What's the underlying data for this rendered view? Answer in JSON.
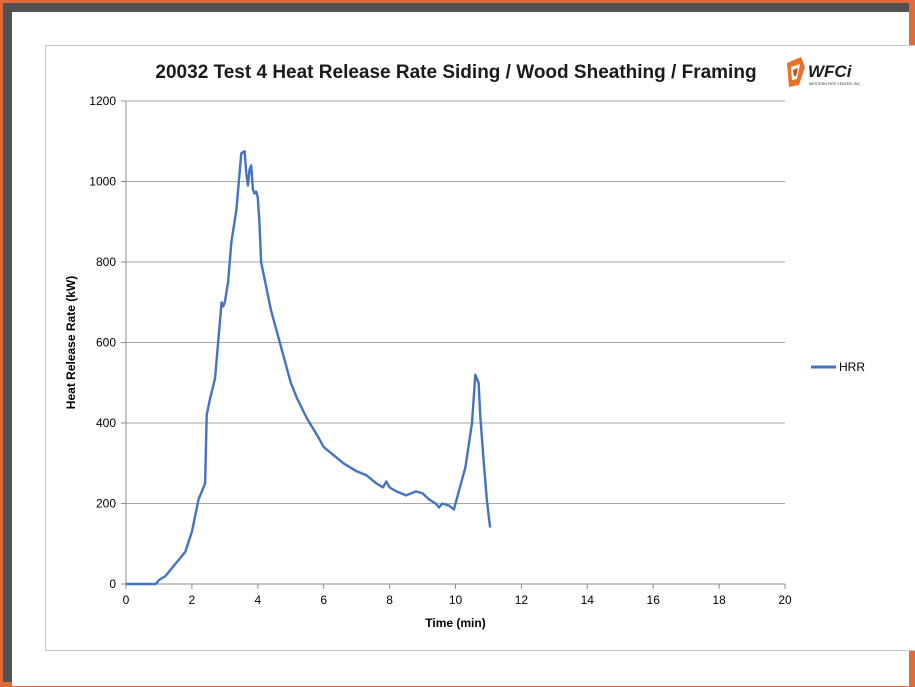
{
  "logo": {
    "text": "WFCi",
    "subtext": "WESTERN FIRE CENTER, INC."
  },
  "colors": {
    "series": "#4472c4",
    "grid": "#a6a6a6",
    "logo": "#e8702a"
  },
  "chart_data": {
    "type": "line",
    "title": "20032 Test 4 Heat Release Rate Siding / Wood Sheathing / Framing",
    "xlabel": "Time (min)",
    "ylabel": "Heat Release Rate (kW)",
    "xlim": [
      0,
      20
    ],
    "ylim": [
      0,
      1200
    ],
    "xticks": [
      "0",
      "2",
      "4",
      "6",
      "8",
      "10",
      "12",
      "14",
      "16",
      "18",
      "20"
    ],
    "yticks": [
      "0",
      "200",
      "400",
      "600",
      "800",
      "1000",
      "1200"
    ],
    "grid": "horizontal",
    "legend_position": "right",
    "series": [
      {
        "name": "HRR",
        "x": [
          0,
          0.9,
          1.0,
          1.2,
          1.4,
          1.6,
          1.8,
          2.0,
          2.2,
          2.4,
          2.45,
          2.55,
          2.7,
          2.9,
          2.95,
          3.0,
          3.1,
          3.2,
          3.35,
          3.5,
          3.6,
          3.65,
          3.7,
          3.75,
          3.8,
          3.85,
          3.9,
          3.95,
          4.0,
          4.05,
          4.1,
          4.2,
          4.3,
          4.4,
          4.6,
          4.8,
          5.0,
          5.2,
          5.5,
          5.8,
          6.0,
          6.3,
          6.6,
          7.0,
          7.3,
          7.6,
          7.8,
          7.9,
          8.0,
          8.2,
          8.5,
          8.8,
          9.0,
          9.2,
          9.4,
          9.5,
          9.6,
          9.8,
          9.95,
          10.1,
          10.3,
          10.5,
          10.6,
          10.7,
          10.75,
          10.85,
          10.95,
          11.05
        ],
        "values": [
          0,
          0,
          10,
          20,
          40,
          60,
          80,
          130,
          210,
          250,
          420,
          460,
          510,
          700,
          690,
          700,
          750,
          850,
          930,
          1070,
          1075,
          1020,
          990,
          1030,
          1040,
          980,
          970,
          975,
          960,
          900,
          800,
          760,
          720,
          680,
          620,
          560,
          500,
          460,
          410,
          370,
          340,
          320,
          300,
          280,
          270,
          250,
          240,
          255,
          240,
          230,
          220,
          230,
          225,
          210,
          200,
          190,
          200,
          195,
          185,
          230,
          290,
          400,
          520,
          500,
          420,
          310,
          210,
          140
        ]
      }
    ]
  }
}
